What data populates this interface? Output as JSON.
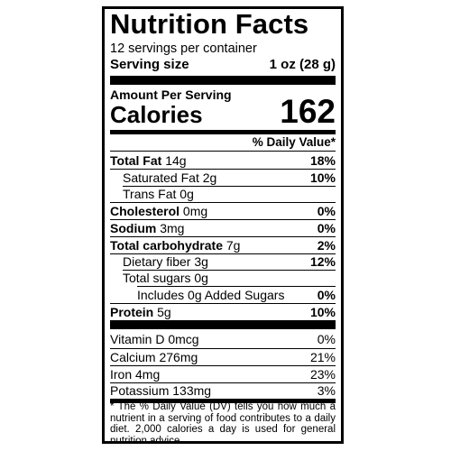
{
  "label": {
    "title": "Nutrition Facts",
    "servings_per_container": "12 servings per container",
    "serving_size_label": "Serving size",
    "serving_size_value": "1 oz (28 g)",
    "amount_per_serving": "Amount Per Serving",
    "calories_label": "Calories",
    "calories_value": "162",
    "daily_value_header": "% Daily Value*",
    "nutrients": [
      {
        "name": "Total Fat",
        "amount": "14g",
        "dv": "18%"
      },
      {
        "name": "Saturated Fat",
        "amount": "2g",
        "dv": "10%"
      },
      {
        "name": "Trans Fat",
        "amount": "0g",
        "dv": ""
      },
      {
        "name": "Cholesterol",
        "amount": "0mg",
        "dv": "0%"
      },
      {
        "name": "Sodium",
        "amount": "3mg",
        "dv": "0%"
      },
      {
        "name": "Total carbohydrate",
        "amount": "7g",
        "dv": "2%"
      },
      {
        "name": "Dietary fiber",
        "amount": "3g",
        "dv": "12%"
      },
      {
        "name": "Total sugars",
        "amount": "0g",
        "dv": ""
      },
      {
        "name": "Includes 0g Added Sugars",
        "amount": "",
        "dv": "0%"
      },
      {
        "name": "Protein",
        "amount": "5g",
        "dv": "10%"
      }
    ],
    "vitamins": [
      {
        "name": "Vitamin D 0mcg",
        "dv": "0%"
      },
      {
        "name": "Calcium 276mg",
        "dv": "21%"
      },
      {
        "name": "Iron 4mg",
        "dv": "23%"
      },
      {
        "name": "Potassium 133mg",
        "dv": "3%"
      }
    ],
    "footnote": "* The % Daily Value (DV) tells you how much a nutrient in a serving of food contributes to a daily diet. 2,000 calories a day is used for general nutrition advice."
  }
}
